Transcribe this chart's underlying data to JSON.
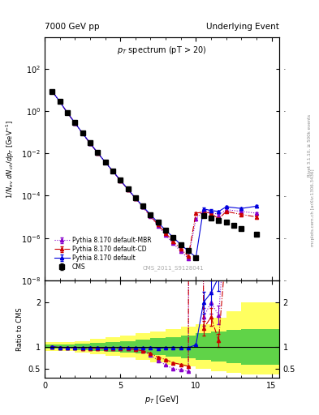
{
  "title_left": "7000 GeV pp",
  "title_right": "Underlying Event",
  "plot_title": "p_{T} spectrum (pT > 20)",
  "ylabel_main": "1/N_{ev} dN_{ch} / dp_{T} [GeV^{-1}]",
  "ylabel_ratio": "Ratio to CMS",
  "xlabel": "p_{T} [GeV]",
  "watermark": "CMS_2011_S9128041",
  "cms_pt": [
    0.5,
    1.0,
    1.5,
    2.0,
    2.5,
    3.0,
    3.5,
    4.0,
    4.5,
    5.0,
    5.5,
    6.0,
    6.5,
    7.0,
    7.5,
    8.0,
    8.5,
    9.0,
    9.5,
    10.0,
    10.5,
    11.0,
    11.5,
    12.0,
    12.5,
    13.0,
    14.0
  ],
  "cms_val": [
    8.5,
    2.8,
    0.85,
    0.28,
    0.092,
    0.031,
    0.011,
    0.004,
    0.0015,
    0.00055,
    0.00021,
    8e-05,
    3.2e-05,
    1.3e-05,
    5.5e-06,
    2.4e-06,
    1.1e-06,
    5e-07,
    2.5e-07,
    1.2e-07,
    1.2e-05,
    9e-06,
    7e-06,
    5.5e-06,
    4e-06,
    2.8e-06,
    1.5e-06
  ],
  "cms_err": [
    0.4,
    0.12,
    0.035,
    0.012,
    0.004,
    0.0013,
    0.00045,
    0.00016,
    6e-05,
    2.2e-05,
    8.4e-06,
    3.2e-06,
    1.3e-06,
    5.2e-07,
    2.2e-07,
    9.6e-08,
    4.4e-08,
    2e-08,
    1e-08,
    4.8e-09,
    1.2e-06,
    9e-07,
    7e-07,
    5.5e-07,
    4e-07,
    2.8e-07,
    1.5e-07
  ],
  "py_pt": [
    0.5,
    1.0,
    1.5,
    2.0,
    2.5,
    3.0,
    3.5,
    4.0,
    4.5,
    5.0,
    5.5,
    6.0,
    6.5,
    7.0,
    7.5,
    8.0,
    8.5,
    9.0,
    9.5,
    10.0,
    10.5,
    11.0,
    11.5,
    12.0,
    13.0,
    14.0
  ],
  "py_val": [
    8.5,
    2.75,
    0.83,
    0.275,
    0.09,
    0.0305,
    0.0108,
    0.0039,
    0.00147,
    0.00054,
    0.000205,
    7.8e-05,
    3.1e-05,
    1.28e-05,
    5.3e-06,
    2.35e-06,
    1.08e-06,
    4.9e-07,
    2.45e-07,
    1.25e-07,
    2.4e-05,
    2e-05,
    1.8e-05,
    3e-05,
    2.5e-05,
    3.2e-05
  ],
  "py_err": [
    0.05,
    0.02,
    0.006,
    0.002,
    0.0006,
    0.0002,
    7e-05,
    2.5e-05,
    9e-06,
    3.4e-06,
    1.3e-06,
    5e-07,
    2e-07,
    8e-08,
    3.4e-08,
    1.5e-08,
    7e-09,
    3e-09,
    1.5e-09,
    7e-10,
    3e-06,
    2.5e-06,
    2.2e-06,
    3.5e-06,
    3e-06,
    3.8e-06
  ],
  "pycd_pt": [
    0.5,
    1.0,
    1.5,
    2.0,
    2.5,
    3.0,
    3.5,
    4.0,
    4.5,
    5.0,
    5.5,
    6.0,
    6.5,
    7.0,
    7.5,
    8.0,
    8.5,
    9.0,
    9.5,
    10.0,
    10.5,
    11.0,
    11.5,
    12.0,
    13.0,
    14.0
  ],
  "pycd_val": [
    8.5,
    2.75,
    0.83,
    0.273,
    0.089,
    0.03,
    0.0106,
    0.00385,
    0.00145,
    0.00053,
    0.0002,
    7.5e-05,
    2.9e-05,
    1.1e-05,
    4.2e-06,
    1.7e-06,
    7e-07,
    3e-07,
    1.4e-07,
    1.5e-05,
    1.7e-05,
    1.5e-05,
    8e-06,
    1.8e-05,
    1.3e-05,
    1e-05
  ],
  "pycd_err": [
    0.05,
    0.02,
    0.006,
    0.002,
    0.0006,
    0.0002,
    7e-05,
    2.5e-05,
    9e-06,
    3.4e-06,
    1.3e-06,
    5e-07,
    2e-07,
    8e-08,
    3e-08,
    1.2e-08,
    5e-09,
    2e-09,
    1e-09,
    2e-06,
    2e-06,
    1.8e-06,
    1e-06,
    2e-06,
    1.5e-06,
    1.2e-06
  ],
  "pym_pt": [
    0.5,
    1.0,
    1.5,
    2.0,
    2.5,
    3.0,
    3.5,
    4.0,
    4.5,
    5.0,
    5.5,
    6.0,
    6.5,
    7.0,
    7.5,
    8.0,
    8.5,
    9.0,
    9.5,
    10.0,
    10.5,
    11.0,
    11.5,
    12.0,
    13.0,
    14.0
  ],
  "pym_val": [
    8.5,
    2.75,
    0.83,
    0.273,
    0.089,
    0.03,
    0.0106,
    0.00385,
    0.00145,
    0.00053,
    0.0002,
    7.5e-05,
    2.9e-05,
    1.05e-05,
    3.8e-06,
    1.4e-06,
    5.5e-07,
    2.4e-07,
    1.1e-07,
    8e-06,
    2e-05,
    1.8e-05,
    1.2e-05,
    2.2e-05,
    1.8e-05,
    1.5e-05
  ],
  "pym_err": [
    0.05,
    0.02,
    0.006,
    0.002,
    0.0006,
    0.0002,
    7e-05,
    2.5e-05,
    9e-06,
    3.4e-06,
    1.3e-06,
    5e-07,
    2e-07,
    8e-08,
    2.8e-08,
    1e-08,
    4e-09,
    1.8e-09,
    8e-10,
    1e-06,
    2.4e-06,
    2.2e-06,
    1.5e-06,
    2.6e-06,
    2.2e-06,
    1.8e-06
  ],
  "yband_edges": [
    0.0,
    1.0,
    2.0,
    3.0,
    4.0,
    5.0,
    6.0,
    7.0,
    8.0,
    9.0,
    10.0,
    11.0,
    12.0,
    13.0,
    15.5
  ],
  "yband_lo": [
    0.9,
    0.9,
    0.87,
    0.83,
    0.79,
    0.75,
    0.7,
    0.65,
    0.6,
    0.55,
    0.5,
    0.45,
    0.4,
    0.38,
    0.35
  ],
  "yband_hi": [
    1.1,
    1.1,
    1.13,
    1.17,
    1.21,
    1.25,
    1.3,
    1.35,
    1.4,
    1.45,
    1.5,
    1.65,
    1.8,
    2.0,
    2.2
  ],
  "gband_lo": [
    0.95,
    0.95,
    0.93,
    0.91,
    0.89,
    0.87,
    0.84,
    0.81,
    0.78,
    0.74,
    0.7,
    0.66,
    0.62,
    0.6,
    0.58
  ],
  "gband_hi": [
    1.05,
    1.05,
    1.07,
    1.09,
    1.11,
    1.13,
    1.16,
    1.19,
    1.22,
    1.26,
    1.3,
    1.34,
    1.38,
    1.4,
    1.42
  ],
  "color_cms": "#000000",
  "color_py": "#0000dd",
  "color_pycd": "#cc0000",
  "color_pym": "#8800cc",
  "color_yellow": "#ffff44",
  "color_green": "#44cc44",
  "xlim": [
    0,
    15.5
  ],
  "ylim_main": [
    1e-08,
    3000.0
  ],
  "ylim_ratio": [
    0.3,
    2.5
  ],
  "ratio_yticks": [
    0.5,
    1.0,
    2.0
  ],
  "ratio_yticklabels": [
    "0.5",
    "1",
    "2"
  ]
}
